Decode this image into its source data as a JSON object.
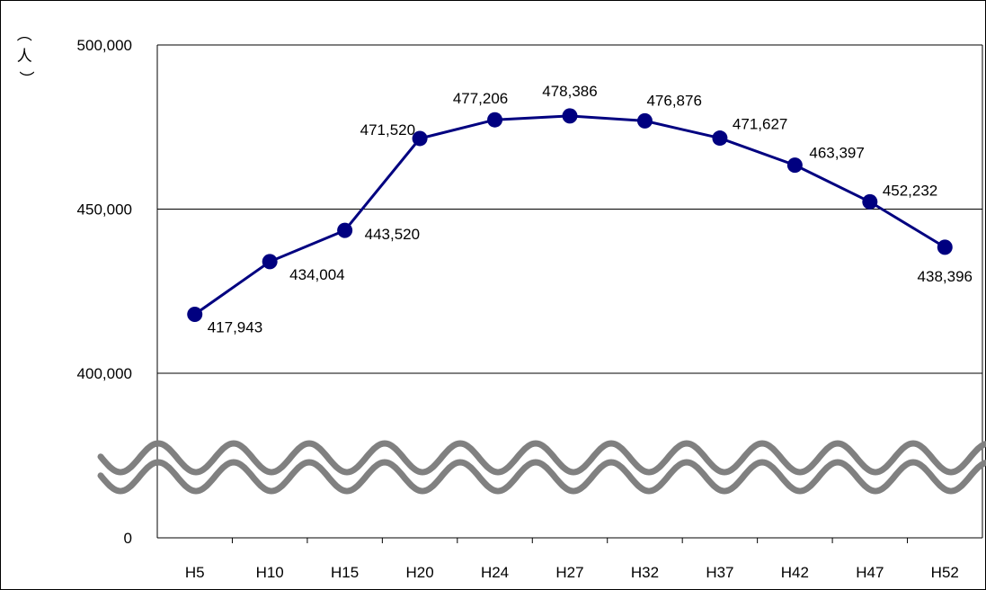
{
  "chart_data": {
    "type": "line",
    "unit_label": "人",
    "categories": [
      "H5",
      "H10",
      "H15",
      "H20",
      "H24",
      "H27",
      "H32",
      "H37",
      "H42",
      "H47",
      "H52"
    ],
    "series": [
      {
        "values": [
          417943,
          434004,
          443520,
          471520,
          477206,
          478386,
          476876,
          471627,
          463397,
          452232,
          438396
        ],
        "color": "#000080"
      }
    ],
    "data_labels": [
      "417,943",
      "434,004",
      "443,520",
      "471,520",
      "477,206",
      "478,386",
      "476,876",
      "471,627",
      "463,397",
      "452,232",
      "438,396"
    ],
    "y_ticks": [
      {
        "value": 500000,
        "label": "500,000"
      },
      {
        "value": 450000,
        "label": "450,000"
      },
      {
        "value": 400000,
        "label": "400,000"
      },
      {
        "value": 0,
        "label": "0"
      }
    ],
    "ylim": [
      400000,
      500000
    ],
    "axis_break": true,
    "grid": true,
    "break_color": "#808080"
  }
}
